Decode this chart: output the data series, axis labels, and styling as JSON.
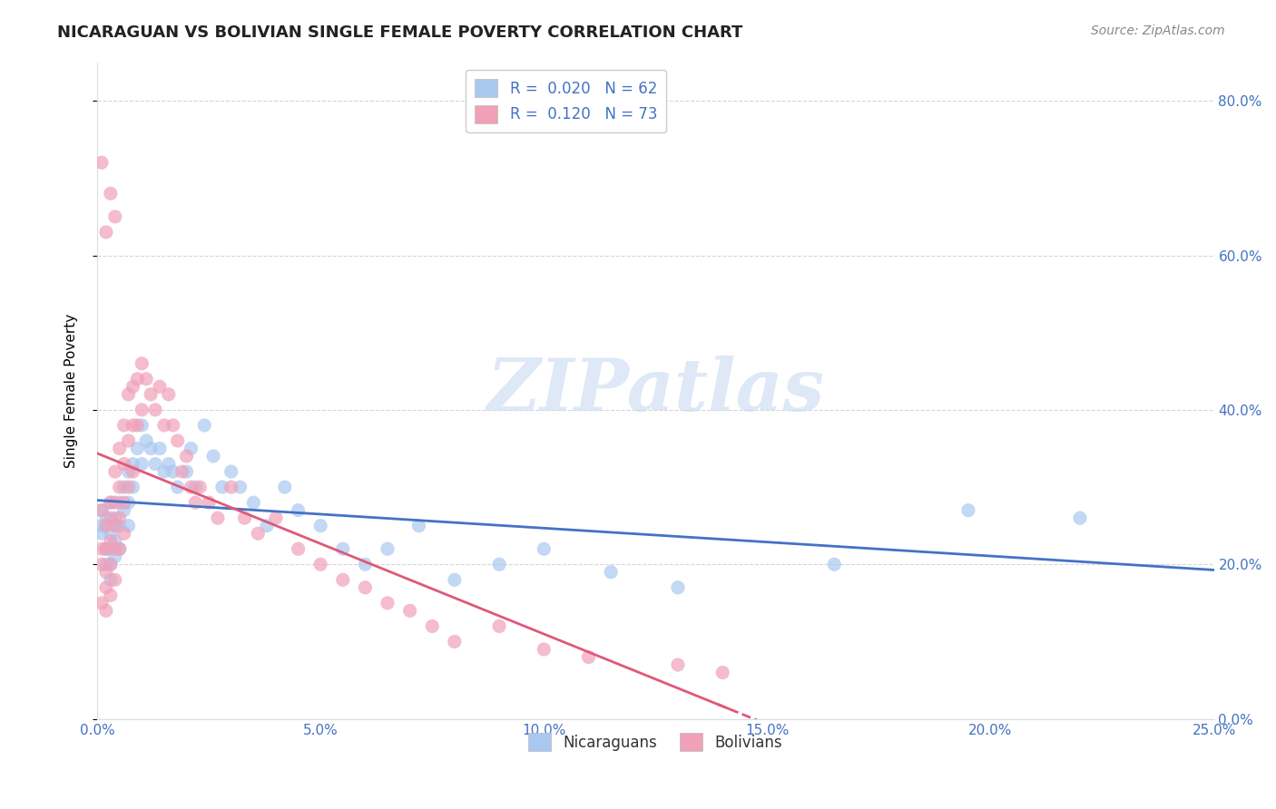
{
  "title": "NICARAGUAN VS BOLIVIAN SINGLE FEMALE POVERTY CORRELATION CHART",
  "source": "Source: ZipAtlas.com",
  "ylabel": "Single Female Poverty",
  "xlim": [
    0.0,
    0.25
  ],
  "ylim": [
    0.0,
    0.85
  ],
  "xtick_vals": [
    0.0,
    0.05,
    0.1,
    0.15,
    0.2,
    0.25
  ],
  "ytick_vals": [
    0.0,
    0.2,
    0.4,
    0.6,
    0.8
  ],
  "background_color": "#ffffff",
  "grid_color": "#cccccc",
  "watermark": "ZIPatlas",
  "series": [
    {
      "name": "Nicaraguans",
      "R": 0.02,
      "N": 62,
      "color": "#a8c8f0",
      "line_color": "#4472c4",
      "x": [
        0.001,
        0.001,
        0.001,
        0.002,
        0.002,
        0.002,
        0.002,
        0.003,
        0.003,
        0.003,
        0.003,
        0.003,
        0.004,
        0.004,
        0.004,
        0.004,
        0.005,
        0.005,
        0.005,
        0.006,
        0.006,
        0.007,
        0.007,
        0.007,
        0.008,
        0.008,
        0.009,
        0.01,
        0.01,
        0.011,
        0.012,
        0.013,
        0.014,
        0.015,
        0.016,
        0.017,
        0.018,
        0.02,
        0.021,
        0.022,
        0.024,
        0.026,
        0.028,
        0.03,
        0.032,
        0.035,
        0.038,
        0.042,
        0.045,
        0.05,
        0.055,
        0.06,
        0.065,
        0.072,
        0.08,
        0.09,
        0.1,
        0.115,
        0.13,
        0.165,
        0.195,
        0.22
      ],
      "y": [
        0.27,
        0.25,
        0.24,
        0.26,
        0.25,
        0.22,
        0.2,
        0.28,
        0.24,
        0.22,
        0.2,
        0.18,
        0.26,
        0.25,
        0.23,
        0.21,
        0.28,
        0.25,
        0.22,
        0.3,
        0.27,
        0.32,
        0.28,
        0.25,
        0.33,
        0.3,
        0.35,
        0.38,
        0.33,
        0.36,
        0.35,
        0.33,
        0.35,
        0.32,
        0.33,
        0.32,
        0.3,
        0.32,
        0.35,
        0.3,
        0.38,
        0.34,
        0.3,
        0.32,
        0.3,
        0.28,
        0.25,
        0.3,
        0.27,
        0.25,
        0.22,
        0.2,
        0.22,
        0.25,
        0.18,
        0.2,
        0.22,
        0.19,
        0.17,
        0.2,
        0.27,
        0.26
      ]
    },
    {
      "name": "Bolivians",
      "R": 0.12,
      "N": 73,
      "color": "#f0a0b8",
      "line_color": "#e05878",
      "x": [
        0.001,
        0.001,
        0.001,
        0.001,
        0.002,
        0.002,
        0.002,
        0.002,
        0.002,
        0.003,
        0.003,
        0.003,
        0.003,
        0.003,
        0.004,
        0.004,
        0.004,
        0.004,
        0.004,
        0.005,
        0.005,
        0.005,
        0.005,
        0.006,
        0.006,
        0.006,
        0.006,
        0.007,
        0.007,
        0.007,
        0.008,
        0.008,
        0.008,
        0.009,
        0.009,
        0.01,
        0.01,
        0.011,
        0.012,
        0.013,
        0.014,
        0.015,
        0.016,
        0.017,
        0.018,
        0.019,
        0.02,
        0.021,
        0.022,
        0.023,
        0.025,
        0.027,
        0.03,
        0.033,
        0.036,
        0.04,
        0.045,
        0.05,
        0.055,
        0.06,
        0.065,
        0.07,
        0.075,
        0.08,
        0.09,
        0.1,
        0.11,
        0.13,
        0.14,
        0.002,
        0.003,
        0.004,
        0.001
      ],
      "y": [
        0.27,
        0.22,
        0.2,
        0.15,
        0.25,
        0.22,
        0.19,
        0.17,
        0.14,
        0.28,
        0.26,
        0.23,
        0.2,
        0.16,
        0.32,
        0.28,
        0.25,
        0.22,
        0.18,
        0.35,
        0.3,
        0.26,
        0.22,
        0.38,
        0.33,
        0.28,
        0.24,
        0.42,
        0.36,
        0.3,
        0.43,
        0.38,
        0.32,
        0.44,
        0.38,
        0.46,
        0.4,
        0.44,
        0.42,
        0.4,
        0.43,
        0.38,
        0.42,
        0.38,
        0.36,
        0.32,
        0.34,
        0.3,
        0.28,
        0.3,
        0.28,
        0.26,
        0.3,
        0.26,
        0.24,
        0.26,
        0.22,
        0.2,
        0.18,
        0.17,
        0.15,
        0.14,
        0.12,
        0.1,
        0.12,
        0.09,
        0.08,
        0.07,
        0.06,
        0.63,
        0.68,
        0.65,
        0.72
      ]
    }
  ]
}
